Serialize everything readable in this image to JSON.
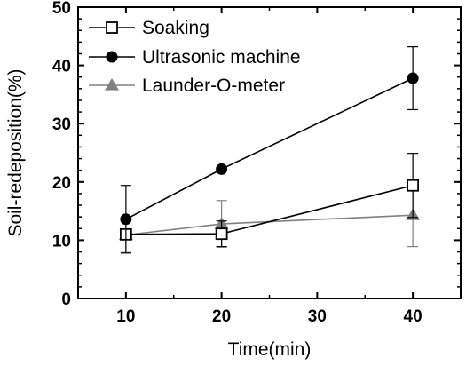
{
  "chart_data": {
    "type": "line",
    "title": "",
    "xlabel": "Time(min)",
    "ylabel": "Soil-redeposition(%)",
    "xlim": [
      5,
      45
    ],
    "ylim": [
      0,
      50
    ],
    "x_ticks": [
      "10",
      "20",
      "30",
      "40"
    ],
    "y_ticks": [
      "0",
      "10",
      "20",
      "30",
      "40",
      "50"
    ],
    "grid": false,
    "legend_position": "top-left",
    "x": [
      10,
      20,
      40
    ],
    "series": [
      {
        "name": "Soaking",
        "marker": "open-square",
        "color": "#000000",
        "values": [
          11.0,
          11.1,
          19.4
        ],
        "error": [
          null,
          2.2,
          5.5
        ]
      },
      {
        "name": "Ultrasonic machine",
        "marker": "filled-circle",
        "color": "#000000",
        "values": [
          13.6,
          22.2,
          37.8
        ],
        "error": [
          5.8,
          null,
          5.4
        ]
      },
      {
        "name": "Launder-O-meter",
        "marker": "filled-triangle",
        "color": "#808080",
        "values": [
          10.9,
          12.8,
          14.3
        ],
        "error": [
          3.0,
          4.0,
          5.4
        ]
      }
    ]
  }
}
